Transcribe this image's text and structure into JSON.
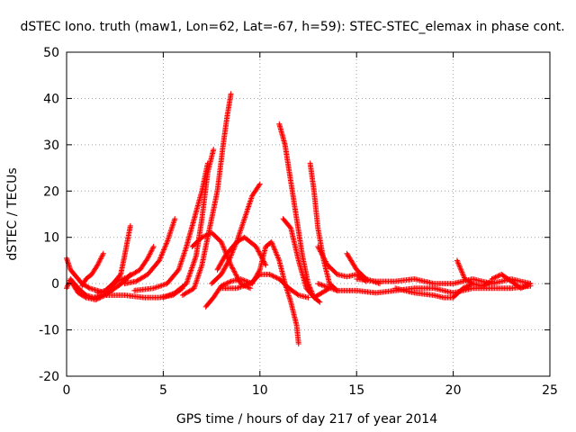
{
  "chart_data": {
    "type": "scatter",
    "title": "dSTEC Iono. truth (maw1, Lon=62, Lat=-67, h=59): STEC-STEC_elemax in phase cont.",
    "xlabel": "GPS time / hours of day 217 of year 2014",
    "ylabel": "dSTEC  / TECUs",
    "xlim": [
      0,
      25
    ],
    "ylim": [
      -20,
      50
    ],
    "xticks": [
      0,
      5,
      10,
      15,
      20,
      25
    ],
    "yticks": [
      -20,
      -10,
      0,
      10,
      20,
      30,
      40,
      50
    ],
    "grid": true,
    "marker": "+",
    "color": "#ff0000",
    "series": [
      {
        "values": [
          [
            0,
            5.5
          ],
          [
            0.2,
            3
          ],
          [
            0.5,
            1.5
          ],
          [
            0.8,
            0
          ],
          [
            1.2,
            -1
          ],
          [
            1.6,
            -1.5
          ],
          [
            2.0,
            -2
          ]
        ]
      },
      {
        "values": [
          [
            0,
            -1
          ],
          [
            0.2,
            1
          ],
          [
            0.6,
            -1
          ],
          [
            1,
            -2.5
          ],
          [
            1.4,
            -3
          ],
          [
            1.8,
            -2.5
          ],
          [
            2.2,
            -2
          ]
        ]
      },
      {
        "values": [
          [
            0.8,
            -0.5
          ],
          [
            1.0,
            1
          ],
          [
            1.3,
            2
          ],
          [
            1.6,
            4
          ],
          [
            1.9,
            6.5
          ]
        ]
      },
      {
        "values": [
          [
            0.3,
            0
          ],
          [
            0.6,
            -2
          ],
          [
            1.0,
            -3
          ],
          [
            1.5,
            -3.5
          ],
          [
            2.0,
            -2.5
          ],
          [
            2.5,
            -1
          ],
          [
            3.0,
            0.5
          ],
          [
            3.3,
            2
          ]
        ]
      },
      {
        "values": [
          [
            1.6,
            -2
          ],
          [
            2.0,
            -1.5
          ],
          [
            2.4,
            0
          ],
          [
            2.8,
            2
          ],
          [
            3.0,
            6
          ],
          [
            3.3,
            12.5
          ]
        ]
      },
      {
        "values": [
          [
            2.2,
            -1
          ],
          [
            2.6,
            0.5
          ],
          [
            3.2,
            1.5
          ],
          [
            3.8,
            3
          ],
          [
            4.2,
            5.5
          ],
          [
            4.5,
            8
          ]
        ]
      },
      {
        "values": [
          [
            3.0,
            0
          ],
          [
            3.6,
            0.5
          ],
          [
            4.2,
            2
          ],
          [
            4.8,
            5
          ],
          [
            5.2,
            9
          ],
          [
            5.6,
            14
          ]
        ]
      },
      {
        "values": [
          [
            2.0,
            -2.5
          ],
          [
            3.0,
            -2.5
          ],
          [
            4.0,
            -3
          ],
          [
            4.8,
            -3
          ],
          [
            5.5,
            -2.5
          ],
          [
            6.0,
            -1
          ]
        ]
      },
      {
        "values": [
          [
            3.5,
            -1.5
          ],
          [
            4.5,
            -1
          ],
          [
            5.2,
            0
          ],
          [
            5.8,
            3
          ],
          [
            6.2,
            8
          ],
          [
            6.6,
            14
          ],
          [
            7.0,
            20
          ],
          [
            7.3,
            26
          ]
        ]
      },
      {
        "values": [
          [
            5.0,
            -3
          ],
          [
            5.6,
            -2
          ],
          [
            6.2,
            0
          ],
          [
            6.7,
            6
          ],
          [
            7.0,
            14
          ],
          [
            7.3,
            24
          ],
          [
            7.6,
            29
          ]
        ]
      },
      {
        "values": [
          [
            6.0,
            -2.5
          ],
          [
            6.6,
            -1
          ],
          [
            7.0,
            4
          ],
          [
            7.4,
            12
          ],
          [
            7.8,
            20
          ],
          [
            8.1,
            30
          ],
          [
            8.3,
            36
          ],
          [
            8.5,
            41
          ]
        ]
      },
      {
        "values": [
          [
            7.2,
            -5
          ],
          [
            7.6,
            -3
          ],
          [
            8.0,
            -0.5
          ],
          [
            8.5,
            0.5
          ],
          [
            9.0,
            1
          ],
          [
            9.6,
            0
          ]
        ]
      },
      {
        "values": [
          [
            7.5,
            0
          ],
          [
            8.0,
            2
          ],
          [
            8.4,
            5
          ],
          [
            8.8,
            9
          ],
          [
            9.2,
            14
          ],
          [
            9.6,
            19
          ],
          [
            10.0,
            21.5
          ]
        ]
      },
      {
        "values": [
          [
            6.5,
            8
          ],
          [
            7.0,
            10
          ],
          [
            7.5,
            11
          ],
          [
            8.0,
            9
          ],
          [
            8.5,
            4
          ],
          [
            9.0,
            0
          ],
          [
            9.5,
            -1
          ]
        ]
      },
      {
        "values": [
          [
            7.8,
            3
          ],
          [
            8.2,
            6
          ],
          [
            8.8,
            9
          ],
          [
            9.2,
            10
          ],
          [
            9.8,
            8
          ],
          [
            10.3,
            4
          ]
        ]
      },
      {
        "values": [
          [
            8.0,
            -1
          ],
          [
            8.8,
            -1
          ],
          [
            9.5,
            0
          ],
          [
            10.0,
            2
          ],
          [
            10.5,
            2
          ],
          [
            11.0,
            1
          ],
          [
            11.5,
            -1
          ],
          [
            12.0,
            -2.5
          ],
          [
            12.5,
            -3
          ]
        ]
      },
      {
        "values": [
          [
            9.6,
            0
          ],
          [
            10.0,
            3
          ],
          [
            10.3,
            8
          ],
          [
            10.6,
            9
          ],
          [
            11.0,
            5
          ],
          [
            11.3,
            0
          ],
          [
            11.6,
            -4
          ],
          [
            11.9,
            -9
          ],
          [
            12.0,
            -13
          ]
        ]
      },
      {
        "values": [
          [
            11.0,
            34.5
          ],
          [
            11.3,
            30
          ],
          [
            11.6,
            22
          ],
          [
            11.9,
            14
          ],
          [
            12.2,
            6
          ],
          [
            12.5,
            0
          ],
          [
            12.8,
            -3
          ],
          [
            13.1,
            -4
          ]
        ]
      },
      {
        "values": [
          [
            11.2,
            14
          ],
          [
            11.6,
            12
          ],
          [
            12.0,
            5
          ],
          [
            12.4,
            -1
          ],
          [
            12.8,
            -3
          ],
          [
            13.2,
            -2
          ],
          [
            13.6,
            -1
          ]
        ]
      },
      {
        "values": [
          [
            12.6,
            26
          ],
          [
            12.8,
            20
          ],
          [
            13.0,
            12
          ],
          [
            13.3,
            5
          ],
          [
            13.6,
            0
          ],
          [
            14.0,
            -1.5
          ]
        ]
      },
      {
        "values": [
          [
            13.0,
            8
          ],
          [
            13.5,
            4
          ],
          [
            14.0,
            2
          ],
          [
            14.5,
            1.5
          ],
          [
            15.0,
            2
          ],
          [
            15.5,
            0.5
          ]
        ]
      },
      {
        "values": [
          [
            14.5,
            6.5
          ],
          [
            15.0,
            3
          ],
          [
            15.5,
            1
          ],
          [
            16.2,
            0
          ]
        ]
      },
      {
        "values": [
          [
            13.0,
            0
          ],
          [
            14.0,
            -1.5
          ],
          [
            15.0,
            -1.5
          ],
          [
            16.0,
            -2
          ],
          [
            17.0,
            -1.5
          ],
          [
            18.0,
            -1
          ],
          [
            19.0,
            -1
          ],
          [
            20.0,
            -2
          ],
          [
            21.0,
            -1
          ],
          [
            22.0,
            -1
          ],
          [
            23.0,
            -1
          ],
          [
            24.0,
            -0.5
          ]
        ]
      },
      {
        "values": [
          [
            15.0,
            1
          ],
          [
            16.0,
            0.5
          ],
          [
            17.0,
            0.5
          ],
          [
            18.0,
            1
          ],
          [
            19.0,
            0
          ],
          [
            20.0,
            0
          ],
          [
            21.0,
            1
          ],
          [
            22.0,
            0
          ],
          [
            23.0,
            1
          ],
          [
            24.0,
            0
          ]
        ]
      },
      {
        "values": [
          [
            17.0,
            -1
          ],
          [
            18.0,
            -2
          ],
          [
            19.0,
            -2.5
          ],
          [
            19.5,
            -3
          ],
          [
            20.0,
            -3
          ],
          [
            20.5,
            -1
          ],
          [
            21.0,
            0
          ]
        ]
      },
      {
        "values": [
          [
            20.2,
            5
          ],
          [
            20.4,
            3
          ],
          [
            20.6,
            1
          ],
          [
            21.0,
            0
          ],
          [
            21.5,
            -0.5
          ],
          [
            22.0,
            0.5
          ]
        ]
      },
      {
        "values": [
          [
            22.0,
            1
          ],
          [
            22.5,
            2
          ],
          [
            23.0,
            0.5
          ],
          [
            23.5,
            -1
          ],
          [
            24.0,
            0
          ]
        ]
      }
    ]
  }
}
